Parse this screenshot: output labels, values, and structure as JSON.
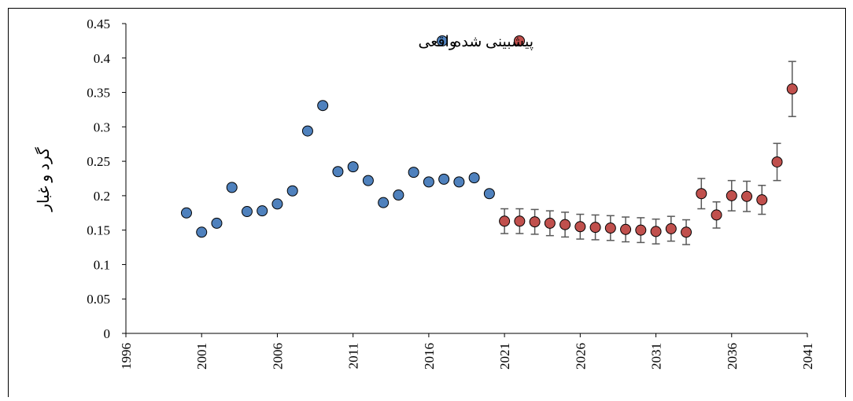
{
  "chart_data": {
    "type": "scatter",
    "y_label": "گرد و غبار",
    "xlim": [
      1996,
      2041
    ],
    "xticks": [
      1996,
      2001,
      2006,
      2011,
      2016,
      2021,
      2026,
      2031,
      2036,
      2041
    ],
    "ylim": [
      0,
      0.45
    ],
    "yticks": [
      0,
      0.05,
      0.1,
      0.15,
      0.2,
      0.25,
      0.3,
      0.35,
      0.4,
      0.45
    ],
    "series": [
      {
        "name": "واقعی",
        "color": "#4f81bd",
        "x": [
          2000,
          2001,
          2002,
          2003,
          2004,
          2005,
          2006,
          2007,
          2008,
          2009,
          2010,
          2011,
          2012,
          2013,
          2014,
          2015,
          2016,
          2017,
          2018,
          2019,
          2020
        ],
        "values": [
          0.175,
          0.147,
          0.16,
          0.212,
          0.177,
          0.178,
          0.188,
          0.207,
          0.294,
          0.331,
          0.235,
          0.242,
          0.222,
          0.19,
          0.201,
          0.234,
          0.22,
          0.224,
          0.22,
          0.226,
          0.203
        ]
      },
      {
        "name": "پیشبینی شده",
        "color": "#c0504d",
        "x": [
          2021,
          2022,
          2023,
          2024,
          2025,
          2026,
          2027,
          2028,
          2029,
          2030,
          2031,
          2032,
          2033,
          2034,
          2035,
          2036,
          2037,
          2038,
          2039,
          2040
        ],
        "values": [
          0.163,
          0.163,
          0.162,
          0.16,
          0.158,
          0.155,
          0.154,
          0.153,
          0.151,
          0.15,
          0.148,
          0.152,
          0.147,
          0.203,
          0.172,
          0.2,
          0.199,
          0.194,
          0.249,
          0.355
        ],
        "errors": [
          0.018,
          0.018,
          0.018,
          0.018,
          0.018,
          0.018,
          0.018,
          0.018,
          0.018,
          0.018,
          0.018,
          0.018,
          0.018,
          0.022,
          0.019,
          0.022,
          0.022,
          0.021,
          0.027,
          0.04
        ]
      }
    ]
  }
}
